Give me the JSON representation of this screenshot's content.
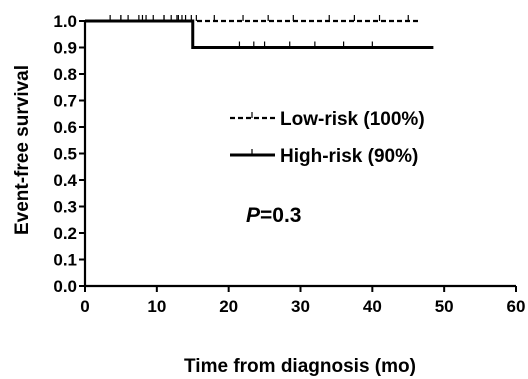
{
  "chart_data": {
    "type": "line",
    "subtype": "kaplan-meier",
    "title": "",
    "xlabel": "Time from diagnosis (mo)",
    "ylabel": "Event-free survival",
    "xlim": [
      0,
      60
    ],
    "ylim": [
      0.0,
      1.0
    ],
    "x_ticks": [
      0,
      10,
      20,
      30,
      40,
      50,
      60
    ],
    "y_ticks": [
      0.0,
      0.1,
      0.2,
      0.3,
      0.4,
      0.5,
      0.6,
      0.7,
      0.8,
      0.9,
      1.0
    ],
    "x_tick_labels": [
      "0",
      "10",
      "20",
      "30",
      "40",
      "50",
      "60"
    ],
    "y_tick_labels": [
      "0.0",
      "0.1",
      "0.2",
      "0.3",
      "0.4",
      "0.5",
      "0.6",
      "0.7",
      "0.8",
      "0.9",
      "1.0"
    ],
    "grid": false,
    "legend_position": "center-right",
    "series": [
      {
        "name": "Low-risk (100%)",
        "style": "dashed",
        "color": "#000000",
        "steps": [
          [
            0,
            1.0
          ],
          [
            46.5,
            1.0
          ]
        ],
        "censor_times": [
          3.5,
          5,
          6,
          7.5,
          8.5,
          9.5,
          11,
          12,
          12.8,
          13.5,
          14,
          14.8,
          15.5,
          18,
          22,
          25.5,
          29,
          34,
          37.5,
          41,
          45
        ]
      },
      {
        "name": "High-risk (90%)",
        "style": "solid",
        "color": "#000000",
        "steps": [
          [
            0,
            1.0
          ],
          [
            15,
            1.0
          ],
          [
            15,
            0.9
          ],
          [
            48.5,
            0.9
          ]
        ],
        "censor_times": [
          5,
          8,
          11,
          13,
          21.5,
          23.5,
          25,
          28.5,
          32,
          36,
          40
        ]
      }
    ],
    "annotation": {
      "italic": "P",
      "rest": "=0.3"
    }
  }
}
